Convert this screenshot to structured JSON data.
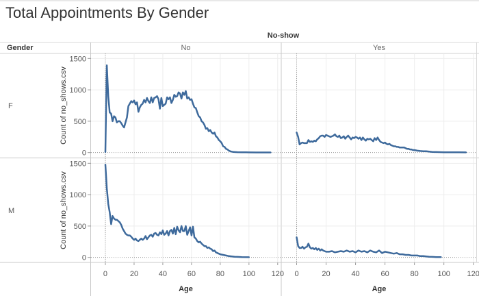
{
  "title": "Total Appointments By Gender",
  "chart_data": {
    "type": "line",
    "title": "Total Appointments By Gender",
    "column_header": "No-show",
    "columns": [
      "No",
      "Yes"
    ],
    "row_header": "Gender",
    "rows": [
      "F",
      "M"
    ],
    "xlabel": "Age",
    "ylabel": "Count of no_shows.csv",
    "xlim": [
      -10,
      122
    ],
    "ylim": [
      -80,
      1580
    ],
    "x_ticks": [
      0,
      20,
      40,
      60,
      80,
      100,
      120
    ],
    "y_ticks": [
      0,
      500,
      1000,
      1500
    ],
    "line_color": "#3e6a9c",
    "panels": [
      {
        "gender": "F",
        "noshow": "No",
        "x": [
          0,
          1,
          2,
          3,
          4,
          5,
          6,
          7,
          8,
          9,
          10,
          11,
          12,
          13,
          14,
          15,
          16,
          17,
          18,
          19,
          20,
          21,
          22,
          23,
          24,
          25,
          26,
          27,
          28,
          29,
          30,
          31,
          32,
          33,
          34,
          35,
          36,
          37,
          38,
          39,
          40,
          41,
          42,
          43,
          44,
          45,
          46,
          47,
          48,
          49,
          50,
          51,
          52,
          53,
          54,
          55,
          56,
          57,
          58,
          59,
          60,
          61,
          62,
          63,
          64,
          65,
          66,
          67,
          68,
          69,
          70,
          71,
          72,
          73,
          74,
          75,
          76,
          77,
          78,
          79,
          80,
          81,
          82,
          83,
          84,
          85,
          86,
          87,
          88,
          89,
          90,
          92,
          95,
          98,
          100,
          105,
          110,
          115
        ],
        "y": [
          10,
          1390,
          900,
          640,
          620,
          500,
          580,
          560,
          480,
          500,
          500,
          470,
          430,
          400,
          480,
          560,
          740,
          780,
          820,
          800,
          830,
          770,
          800,
          650,
          720,
          760,
          780,
          840,
          800,
          870,
          820,
          790,
          880,
          800,
          870,
          880,
          900,
          850,
          700,
          870,
          740,
          760,
          780,
          880,
          850,
          880,
          790,
          840,
          920,
          890,
          900,
          960,
          940,
          860,
          960,
          920,
          980,
          860,
          880,
          840,
          850,
          780,
          720,
          710,
          640,
          580,
          560,
          500,
          480,
          440,
          380,
          390,
          340,
          360,
          320,
          300,
          320,
          260,
          240,
          200,
          180,
          150,
          100,
          90,
          60,
          50,
          30,
          20,
          15,
          10,
          8,
          6,
          5,
          4,
          3,
          2,
          2,
          2
        ]
      },
      {
        "gender": "F",
        "noshow": "Yes",
        "x": [
          0,
          1,
          2,
          3,
          4,
          5,
          6,
          7,
          8,
          9,
          10,
          11,
          12,
          13,
          14,
          15,
          16,
          17,
          18,
          19,
          20,
          21,
          22,
          23,
          24,
          25,
          26,
          27,
          28,
          29,
          30,
          31,
          32,
          33,
          34,
          35,
          36,
          37,
          38,
          39,
          40,
          41,
          42,
          43,
          44,
          45,
          46,
          47,
          48,
          49,
          50,
          51,
          52,
          53,
          54,
          55,
          56,
          57,
          58,
          59,
          60,
          61,
          62,
          63,
          64,
          65,
          66,
          67,
          68,
          69,
          70,
          71,
          72,
          73,
          74,
          75,
          76,
          77,
          78,
          79,
          80,
          82,
          84,
          86,
          88,
          90,
          92,
          95,
          100,
          105,
          110,
          115
        ],
        "y": [
          320,
          250,
          130,
          150,
          160,
          150,
          150,
          150,
          200,
          170,
          180,
          170,
          190,
          180,
          210,
          230,
          260,
          270,
          270,
          250,
          280,
          270,
          260,
          250,
          260,
          270,
          290,
          260,
          250,
          270,
          230,
          240,
          260,
          220,
          250,
          270,
          240,
          210,
          240,
          230,
          250,
          240,
          220,
          240,
          200,
          240,
          210,
          190,
          220,
          210,
          220,
          200,
          180,
          230,
          200,
          240,
          200,
          170,
          160,
          150,
          160,
          140,
          130,
          140,
          120,
          110,
          100,
          100,
          90,
          90,
          80,
          80,
          80,
          80,
          70,
          60,
          60,
          50,
          50,
          40,
          40,
          30,
          25,
          20,
          20,
          15,
          10,
          8,
          5,
          5,
          4,
          3
        ]
      },
      {
        "gender": "M",
        "noshow": "No",
        "x": [
          0,
          1,
          2,
          3,
          4,
          5,
          6,
          7,
          8,
          9,
          10,
          11,
          12,
          13,
          14,
          15,
          16,
          17,
          18,
          19,
          20,
          21,
          22,
          23,
          24,
          25,
          26,
          27,
          28,
          29,
          30,
          31,
          32,
          33,
          34,
          35,
          36,
          37,
          38,
          39,
          40,
          41,
          42,
          43,
          44,
          45,
          46,
          47,
          48,
          49,
          50,
          51,
          52,
          53,
          54,
          55,
          56,
          57,
          58,
          59,
          60,
          61,
          62,
          63,
          64,
          65,
          66,
          67,
          68,
          69,
          70,
          71,
          72,
          73,
          74,
          75,
          76,
          77,
          78,
          79,
          80,
          82,
          84,
          86,
          88,
          90,
          92,
          95,
          100
        ],
        "y": [
          1480,
          1100,
          850,
          720,
          530,
          660,
          620,
          600,
          600,
          580,
          560,
          520,
          460,
          420,
          380,
          360,
          350,
          350,
          330,
          300,
          280,
          300,
          270,
          260,
          280,
          300,
          280,
          300,
          340,
          290,
          320,
          350,
          360,
          330,
          380,
          390,
          360,
          350,
          400,
          370,
          430,
          360,
          380,
          420,
          350,
          420,
          440,
          380,
          470,
          370,
          490,
          430,
          400,
          500,
          420,
          420,
          500,
          360,
          420,
          480,
          350,
          490,
          320,
          300,
          260,
          240,
          250,
          220,
          200,
          180,
          180,
          150,
          160,
          140,
          130,
          100,
          110,
          80,
          70,
          60,
          50,
          40,
          30,
          20,
          15,
          10,
          8,
          5,
          3
        ]
      },
      {
        "gender": "M",
        "noshow": "Yes",
        "x": [
          0,
          1,
          2,
          3,
          4,
          5,
          6,
          7,
          8,
          9,
          10,
          11,
          12,
          13,
          14,
          15,
          16,
          17,
          18,
          19,
          20,
          22,
          24,
          26,
          28,
          30,
          32,
          34,
          36,
          38,
          40,
          42,
          44,
          46,
          48,
          50,
          52,
          54,
          56,
          58,
          60,
          62,
          64,
          66,
          68,
          70,
          72,
          74,
          76,
          78,
          80,
          82,
          84,
          86,
          88,
          90,
          92,
          95,
          98
        ],
        "y": [
          320,
          180,
          150,
          150,
          170,
          140,
          160,
          170,
          220,
          160,
          140,
          150,
          130,
          150,
          120,
          140,
          110,
          130,
          110,
          100,
          90,
          90,
          100,
          80,
          90,
          100,
          90,
          110,
          90,
          100,
          80,
          110,
          90,
          100,
          80,
          110,
          90,
          80,
          110,
          70,
          90,
          80,
          70,
          60,
          70,
          50,
          50,
          40,
          40,
          30,
          30,
          30,
          20,
          20,
          15,
          10,
          8,
          5,
          4
        ]
      }
    ]
  }
}
